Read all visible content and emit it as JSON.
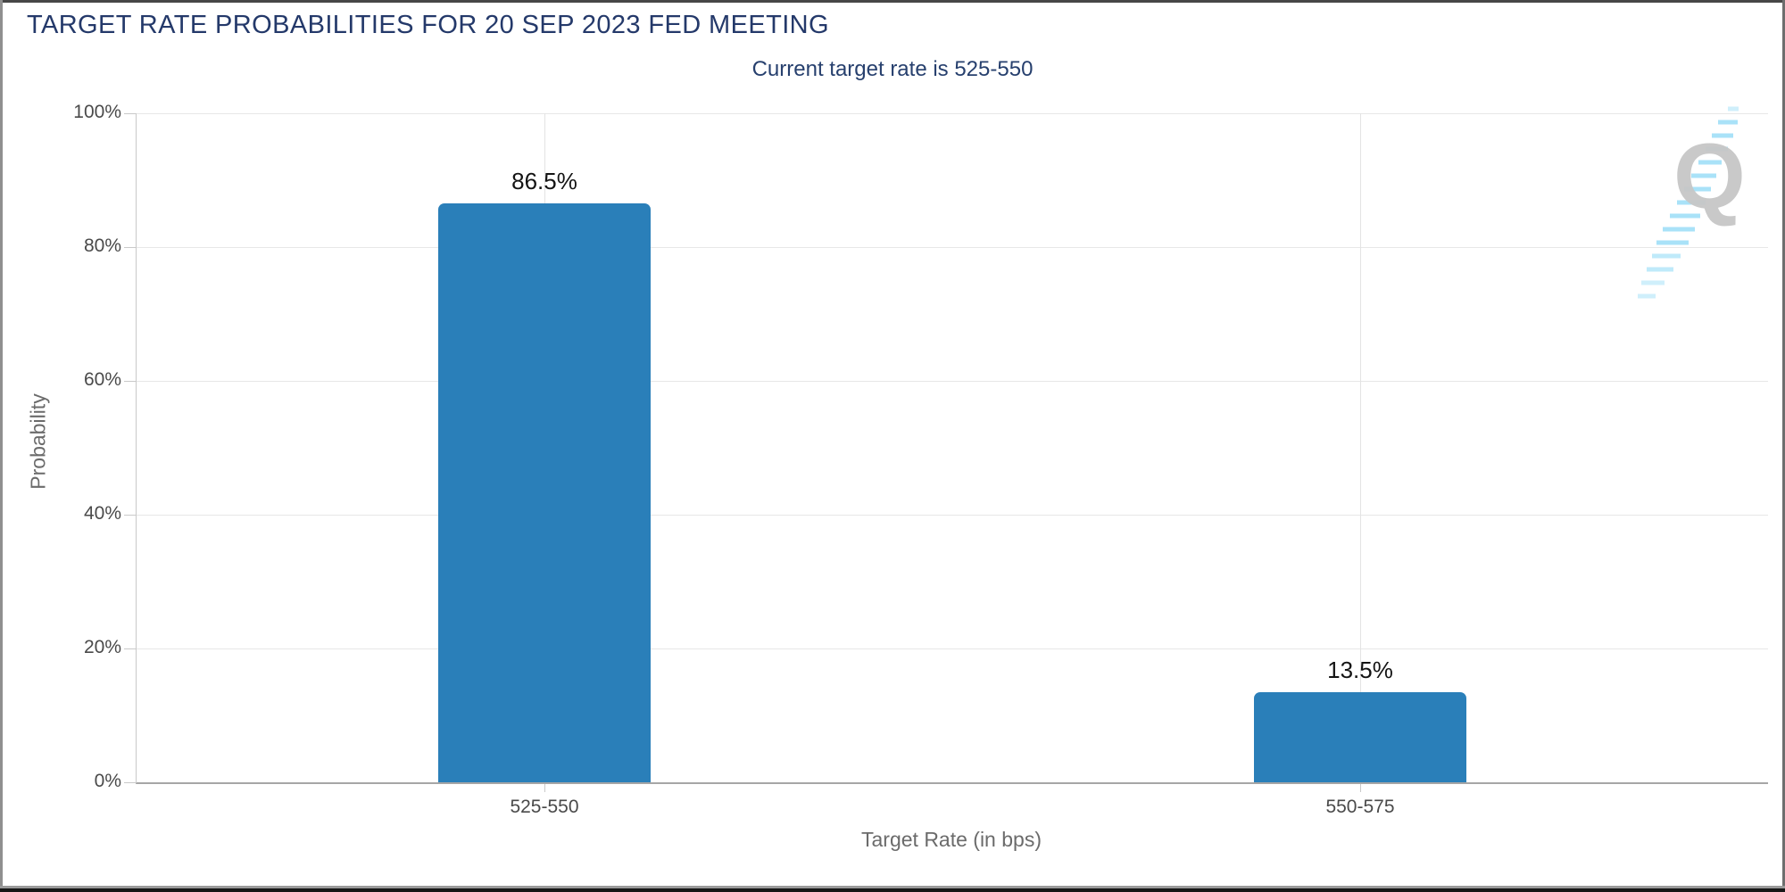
{
  "chart_data": {
    "type": "bar",
    "title": "TARGET RATE PROBABILITIES FOR 20 SEP 2023 FED MEETING",
    "subtitle": "Current target rate is 525-550",
    "categories": [
      "525-550",
      "550-575"
    ],
    "values": [
      86.5,
      13.5
    ],
    "value_labels": [
      "86.5%",
      "13.5%"
    ],
    "xlabel": "Target Rate (in bps)",
    "ylabel": "Probability",
    "ylim": [
      0,
      100
    ],
    "ytick_labels": [
      "0%",
      "20%",
      "40%",
      "60%",
      "80%",
      "100%"
    ],
    "grid": true,
    "legend": "none",
    "bar_color": "#2a7fb9"
  },
  "watermark": {
    "letter": "Q"
  },
  "colors": {
    "title_navy": "#24396a",
    "bar_blue": "#2a7fb9",
    "gridline": "#e7e7e7",
    "axis_line": "#a6a6a6",
    "tick_text": "#4a4a4a",
    "axis_title_text": "#6b6b6b",
    "value_label_text": "#141414",
    "watermark_gray": "#c7c7c7",
    "watermark_blue": "#a9e2f8"
  }
}
